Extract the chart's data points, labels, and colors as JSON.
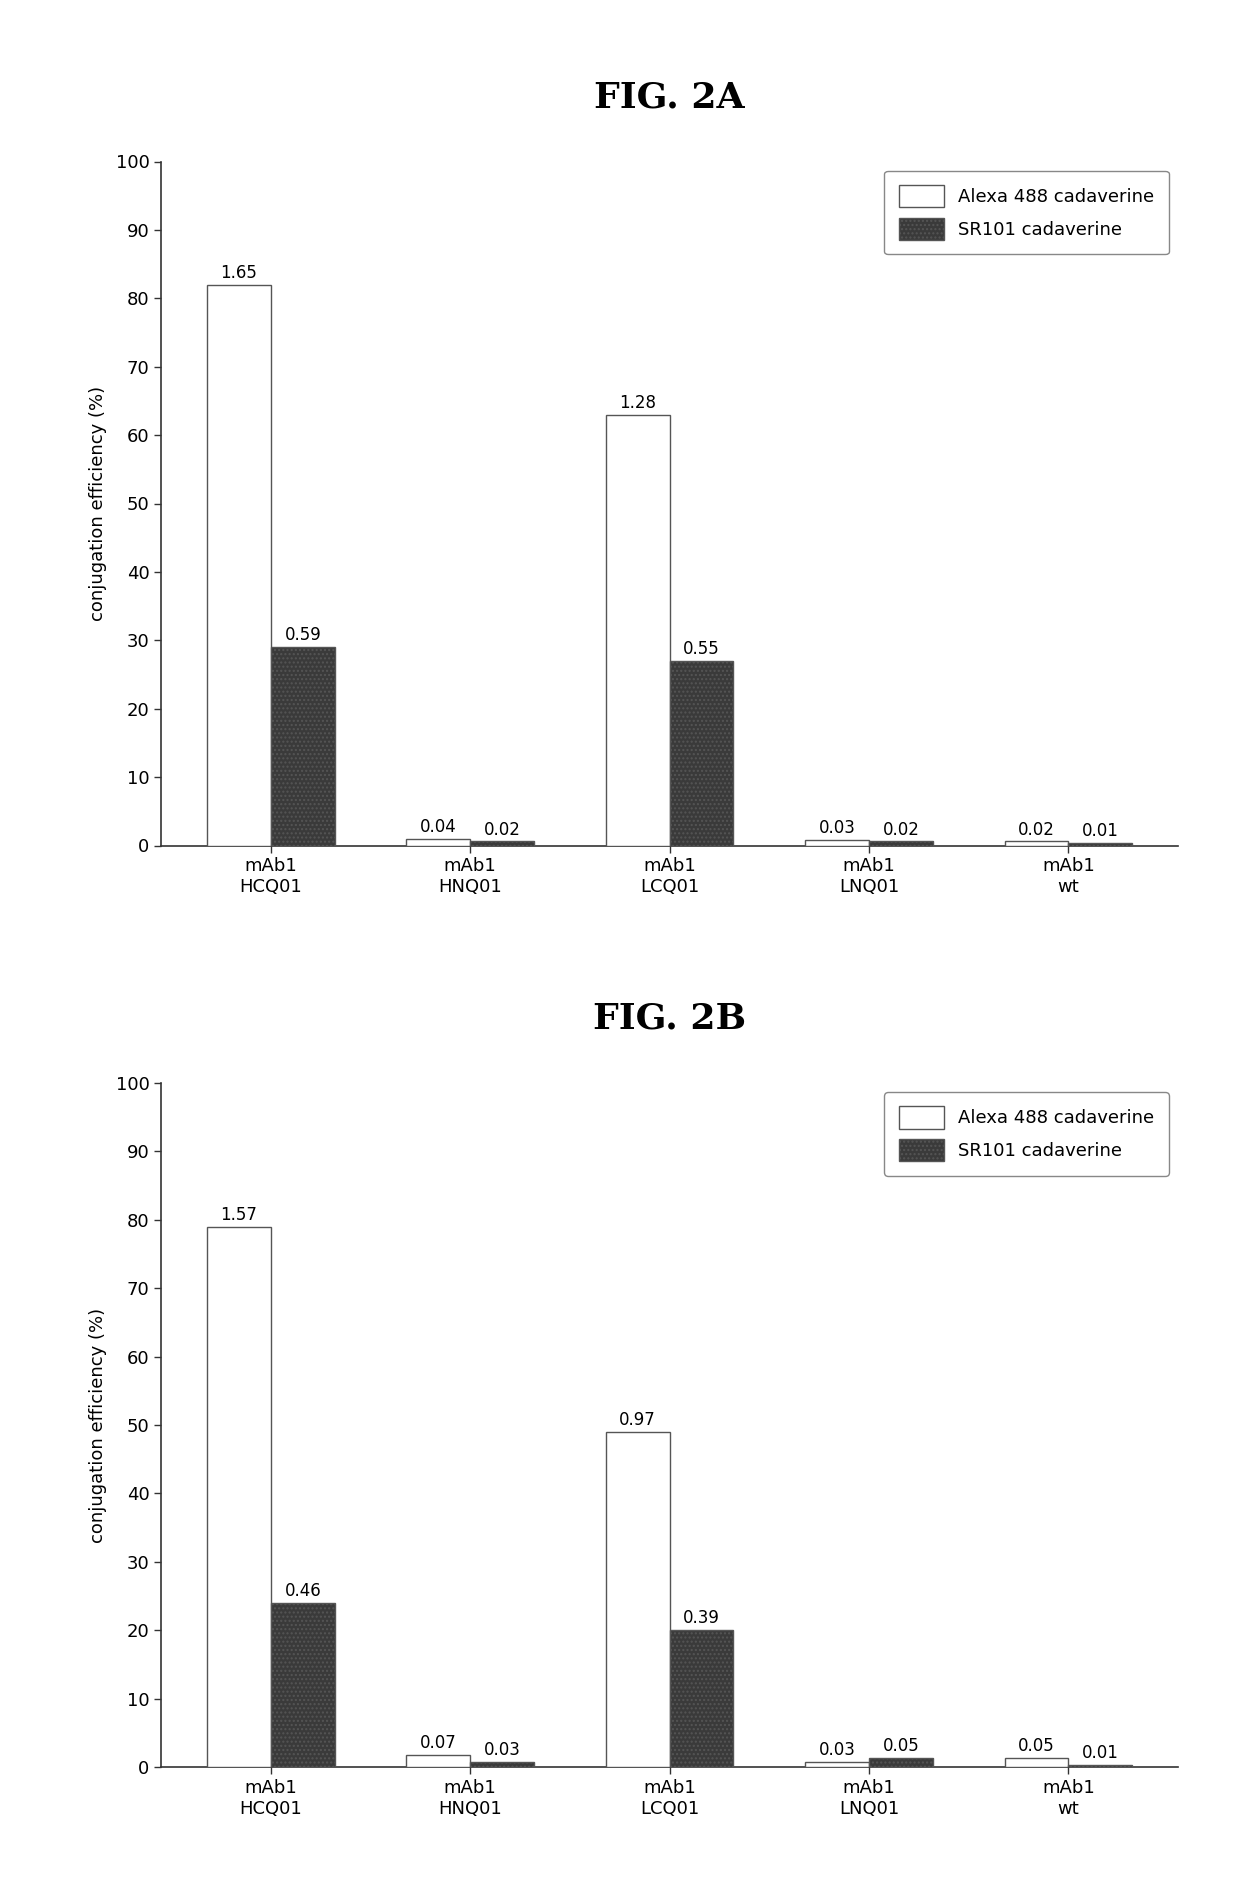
{
  "fig2a": {
    "title": "FIG. 2A",
    "categories": [
      "mAb1\nHCQ01",
      "mAb1\nHNQ01",
      "mAb1\nLCQ01",
      "mAb1\nLNQ01",
      "mAb1\nwt"
    ],
    "alexa_values": [
      82,
      1.0,
      63,
      0.8,
      0.6
    ],
    "sr101_values": [
      29,
      0.6,
      27,
      0.6,
      0.4
    ],
    "alexa_labels": [
      "1.65",
      "0.04",
      "1.28",
      "0.03",
      "0.02"
    ],
    "sr101_labels": [
      "0.59",
      "0.02",
      "0.55",
      "0.02",
      "0.01"
    ],
    "ylabel": "conjugation efficiency (%)",
    "ylim": [
      0,
      100
    ],
    "yticks": [
      0,
      10,
      20,
      30,
      40,
      50,
      60,
      70,
      80,
      90,
      100
    ]
  },
  "fig2b": {
    "title": "FIG. 2B",
    "categories": [
      "mAb1\nHCQ01",
      "mAb1\nHNQ01",
      "mAb1\nLCQ01",
      "mAb1\nLNQ01",
      "mAb1\nwt"
    ],
    "alexa_values": [
      79,
      1.8,
      49,
      0.8,
      1.3
    ],
    "sr101_values": [
      24,
      0.8,
      20,
      1.3,
      0.3
    ],
    "alexa_labels": [
      "1.57",
      "0.07",
      "0.97",
      "0.03",
      "0.05"
    ],
    "sr101_labels": [
      "0.46",
      "0.03",
      "0.39",
      "0.05",
      "0.01"
    ],
    "ylabel": "conjugation efficiency (%)",
    "ylim": [
      0,
      100
    ],
    "yticks": [
      0,
      10,
      20,
      30,
      40,
      50,
      60,
      70,
      80,
      90,
      100
    ]
  },
  "bar_width": 0.32,
  "alexa_color": "#ffffff",
  "sr101_color": "#3a3a3a",
  "sr101_hatch": "....",
  "edge_color": "#555555",
  "legend_labels": [
    "Alexa 488 cadaverine",
    "SR101 cadaverine"
  ],
  "background_color": "#ffffff",
  "label_fontsize": 12,
  "title_fontsize": 26,
  "axis_fontsize": 13,
  "tick_fontsize": 13,
  "legend_fontsize": 13
}
